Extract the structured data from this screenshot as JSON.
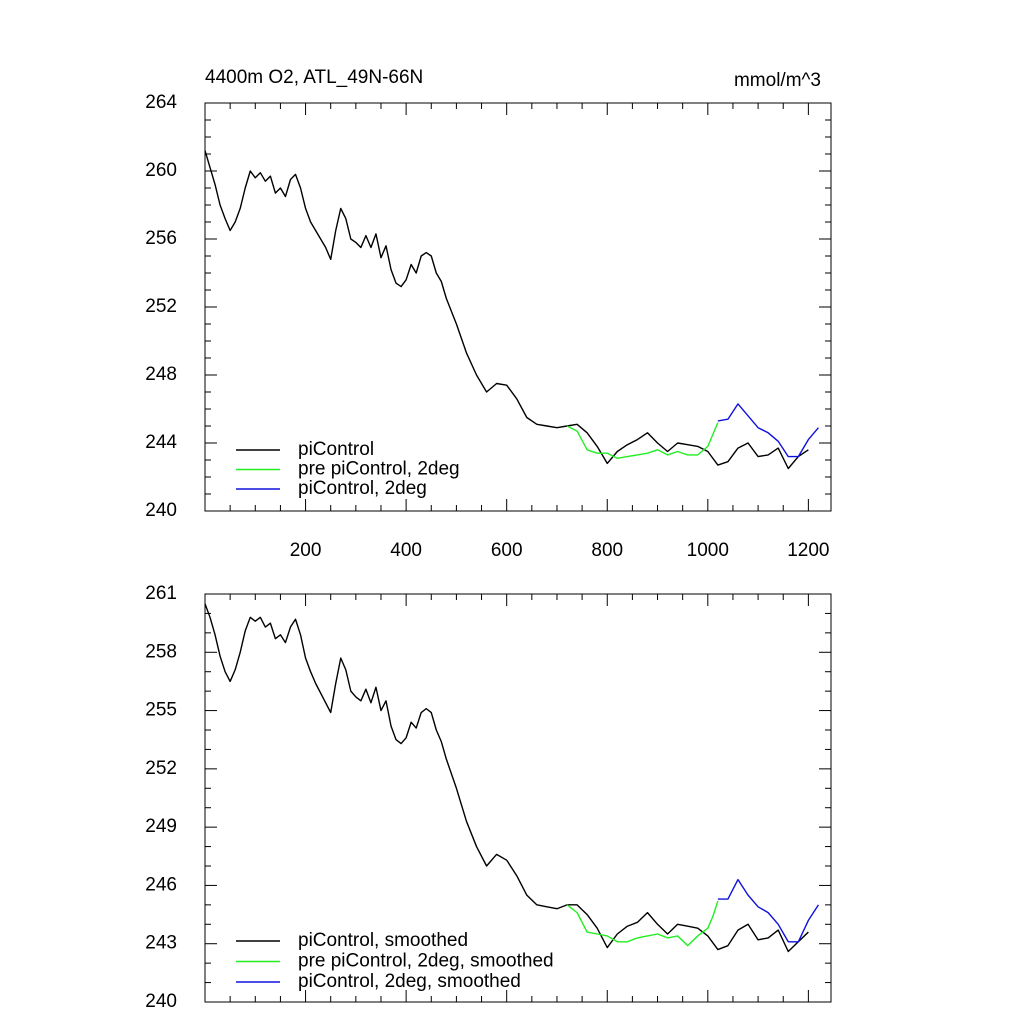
{
  "chart_data": [
    {
      "type": "line",
      "title": "4400m O2, ATL_49N-66N",
      "units": "mmol/m^3",
      "xlim": [
        0,
        1245
      ],
      "xticks": [
        200,
        400,
        600,
        800,
        1000,
        1200
      ],
      "xtick_labels": true,
      "ylim": [
        240,
        264
      ],
      "yticks": [
        240,
        244,
        248,
        252,
        256,
        260,
        264
      ],
      "grid": false,
      "legend": "lower left",
      "series": [
        {
          "name": "piControl",
          "color": "#000000",
          "x": [
            0,
            10,
            20,
            30,
            40,
            50,
            60,
            70,
            80,
            90,
            100,
            110,
            120,
            130,
            140,
            150,
            160,
            170,
            180,
            190,
            200,
            210,
            220,
            240,
            250,
            260,
            270,
            280,
            290,
            300,
            310,
            320,
            330,
            340,
            350,
            360,
            370,
            380,
            390,
            400,
            410,
            420,
            430,
            440,
            450,
            460,
            470,
            480,
            500,
            520,
            540,
            560,
            580,
            600,
            620,
            640,
            660,
            680,
            700,
            720,
            740,
            760,
            780,
            800,
            820,
            840,
            860,
            880,
            900,
            920,
            940,
            960,
            980,
            1000,
            1020,
            1040,
            1060,
            1080,
            1100,
            1120,
            1140,
            1160,
            1180,
            1200
          ],
          "values": [
            261.2,
            260.2,
            259.2,
            258.0,
            257.2,
            256.5,
            257.0,
            257.8,
            259.0,
            260.0,
            259.6,
            259.9,
            259.4,
            259.7,
            258.7,
            259.0,
            258.5,
            259.5,
            259.8,
            259.0,
            257.8,
            257.0,
            256.5,
            255.5,
            254.8,
            256.5,
            257.8,
            257.2,
            256.0,
            255.8,
            255.5,
            256.2,
            255.5,
            256.3,
            254.9,
            255.6,
            254.2,
            253.4,
            253.2,
            253.6,
            254.5,
            254.0,
            255.0,
            255.2,
            255.0,
            254.0,
            253.5,
            252.5,
            251.0,
            249.3,
            248.0,
            247.0,
            247.5,
            247.4,
            246.6,
            245.5,
            245.1,
            245.0,
            244.9,
            245.0,
            245.1,
            244.6,
            243.8,
            242.8,
            243.5,
            243.9,
            244.2,
            244.6,
            244.0,
            243.5,
            244.0,
            243.9,
            243.8,
            243.5,
            242.7,
            242.9,
            243.7,
            244.0,
            243.2,
            243.3,
            243.7,
            242.5,
            243.2,
            243.6
          ]
        },
        {
          "name": "pre piControl, 2deg",
          "color": "#22ee22",
          "x": [
            720,
            740,
            760,
            780,
            800,
            820,
            840,
            860,
            880,
            900,
            920,
            940,
            960,
            980,
            1000,
            1010,
            1020
          ],
          "values": [
            245.0,
            244.7,
            243.6,
            243.4,
            243.4,
            243.1,
            243.2,
            243.3,
            243.4,
            243.6,
            243.3,
            243.5,
            243.3,
            243.3,
            243.8,
            244.5,
            245.2
          ]
        },
        {
          "name": "piControl, 2deg",
          "color": "#1010dd",
          "x": [
            1020,
            1040,
            1060,
            1080,
            1100,
            1120,
            1140,
            1160,
            1180,
            1200,
            1220
          ],
          "values": [
            245.3,
            245.4,
            246.3,
            245.6,
            244.9,
            244.6,
            244.1,
            243.2,
            243.2,
            244.2,
            244.9
          ]
        }
      ]
    },
    {
      "type": "line",
      "xlim": [
        0,
        1245
      ],
      "xticks": [
        200,
        400,
        600,
        800,
        1000,
        1200
      ],
      "xtick_labels": false,
      "ylim": [
        240,
        261
      ],
      "yticks": [
        240,
        243,
        246,
        249,
        252,
        255,
        258,
        261
      ],
      "grid": false,
      "legend": "lower left",
      "series": [
        {
          "name": "piControl, smoothed",
          "color": "#000000",
          "x": [
            0,
            10,
            20,
            30,
            40,
            50,
            60,
            70,
            80,
            90,
            100,
            110,
            120,
            130,
            140,
            150,
            160,
            170,
            180,
            190,
            200,
            210,
            220,
            240,
            250,
            260,
            270,
            280,
            290,
            300,
            310,
            320,
            330,
            340,
            350,
            360,
            370,
            380,
            390,
            400,
            410,
            420,
            430,
            440,
            450,
            460,
            470,
            480,
            500,
            520,
            540,
            560,
            580,
            600,
            620,
            640,
            660,
            680,
            700,
            720,
            740,
            760,
            780,
            800,
            820,
            840,
            860,
            880,
            900,
            920,
            940,
            960,
            980,
            1000,
            1020,
            1040,
            1060,
            1080,
            1100,
            1120,
            1140,
            1160,
            1180,
            1200
          ],
          "values": [
            260.5,
            259.8,
            258.9,
            257.8,
            257.0,
            256.5,
            257.1,
            258.0,
            259.1,
            259.8,
            259.6,
            259.8,
            259.3,
            259.5,
            258.7,
            258.9,
            258.5,
            259.3,
            259.7,
            258.9,
            257.7,
            257.0,
            256.4,
            255.4,
            254.9,
            256.4,
            257.7,
            257.1,
            256.0,
            255.7,
            255.5,
            256.1,
            255.4,
            256.2,
            255.0,
            255.5,
            254.2,
            253.5,
            253.3,
            253.6,
            254.4,
            254.1,
            254.9,
            255.1,
            254.9,
            254.0,
            253.4,
            252.5,
            251.0,
            249.3,
            248.0,
            247.0,
            247.6,
            247.3,
            246.5,
            245.5,
            245.0,
            244.9,
            244.8,
            245.0,
            245.0,
            244.5,
            243.8,
            242.8,
            243.5,
            243.9,
            244.1,
            244.6,
            244.0,
            243.5,
            244.0,
            243.9,
            243.8,
            243.4,
            242.7,
            242.9,
            243.7,
            244.0,
            243.2,
            243.3,
            243.7,
            242.6,
            243.1,
            243.6
          ]
        },
        {
          "name": "pre piControl, 2deg, smoothed",
          "color": "#22ee22",
          "x": [
            720,
            740,
            760,
            780,
            800,
            820,
            840,
            860,
            880,
            900,
            920,
            940,
            960,
            980,
            1000,
            1010,
            1020
          ],
          "values": [
            245.0,
            244.6,
            243.6,
            243.5,
            243.4,
            243.1,
            243.1,
            243.3,
            243.4,
            243.5,
            243.3,
            243.4,
            242.9,
            243.4,
            243.8,
            244.4,
            245.2
          ]
        },
        {
          "name": "piControl, 2deg, smoothed",
          "color": "#1010dd",
          "x": [
            1020,
            1040,
            1060,
            1080,
            1100,
            1120,
            1140,
            1160,
            1180,
            1200,
            1220
          ],
          "values": [
            245.3,
            245.3,
            246.3,
            245.5,
            244.9,
            244.6,
            244.0,
            243.1,
            243.1,
            244.2,
            245.0
          ]
        }
      ]
    }
  ]
}
